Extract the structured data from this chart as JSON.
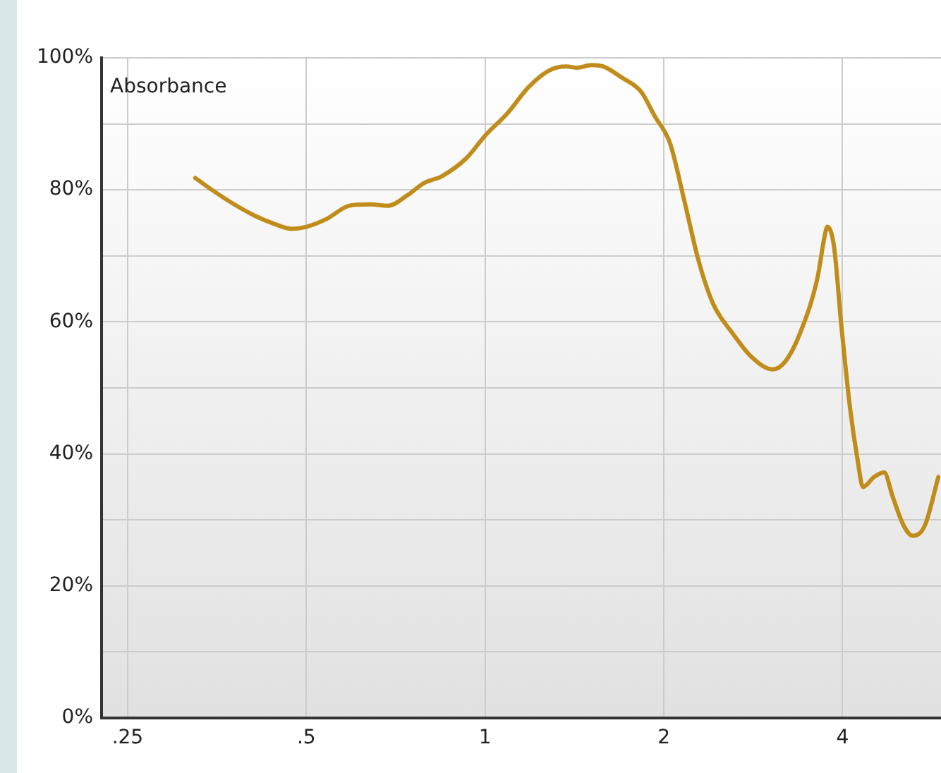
{
  "chart_data": {
    "type": "line",
    "ylabel": "Absorbance",
    "log": "x",
    "grid": true,
    "marker": "none",
    "line_style": "solid",
    "color": "#c08c1a",
    "x": [
      0.325,
      0.348,
      0.378,
      0.409,
      0.443,
      0.472,
      0.5,
      0.541,
      0.591,
      0.639,
      0.687,
      0.743,
      0.788,
      0.847,
      0.93,
      1.0,
      1.093,
      1.182,
      1.283,
      1.37,
      1.43,
      1.51,
      1.58,
      1.7,
      1.83,
      1.93,
      2.05,
      2.16,
      2.29,
      2.42,
      2.62,
      2.81,
      3.05,
      3.21,
      3.4,
      3.63,
      3.73,
      3.77,
      3.87,
      3.98,
      4.12,
      4.24,
      4.33,
      4.52,
      4.7,
      4.86,
      5.06,
      5.25,
      5.5,
      5.8
    ],
    "values": [
      81.8,
      79.9,
      77.8,
      76.1,
      74.8,
      74.1,
      74.4,
      75.6,
      77.6,
      77.8,
      77.6,
      79.3,
      81.0,
      82.1,
      84.8,
      88.2,
      91.7,
      95.5,
      98.1,
      98.7,
      98.5,
      98.9,
      98.7,
      97.0,
      94.9,
      91.2,
      87.0,
      78.8,
      69.2,
      62.8,
      58.1,
      54.7,
      52.8,
      54.1,
      58.5,
      66.7,
      72.9,
      74.4,
      71.4,
      59.6,
      46.8,
      39.1,
      35.0,
      36.5,
      37.2,
      33.5,
      29.3,
      27.6,
      29.1,
      36.5
    ],
    "xlim": [
      0.226,
      5.86
    ],
    "ylim": [
      0,
      100
    ],
    "xticks": [
      {
        "value": 0.25,
        "label": ".25"
      },
      {
        "value": 0.5,
        "label": ".5"
      },
      1,
      2,
      4
    ],
    "yticks": [
      {
        "value": 0,
        "label": "0%"
      },
      {
        "value": 10,
        "label": null
      },
      {
        "value": 20,
        "label": "20%"
      },
      {
        "value": 30,
        "label": null
      },
      {
        "value": 40,
        "label": "40%"
      },
      {
        "value": 50,
        "label": null
      },
      {
        "value": 60,
        "label": "60%"
      },
      {
        "value": 70,
        "label": null
      },
      {
        "value": 80,
        "label": "80%"
      },
      {
        "value": 90,
        "label": null
      },
      {
        "value": 100,
        "label": "100%"
      }
    ]
  }
}
